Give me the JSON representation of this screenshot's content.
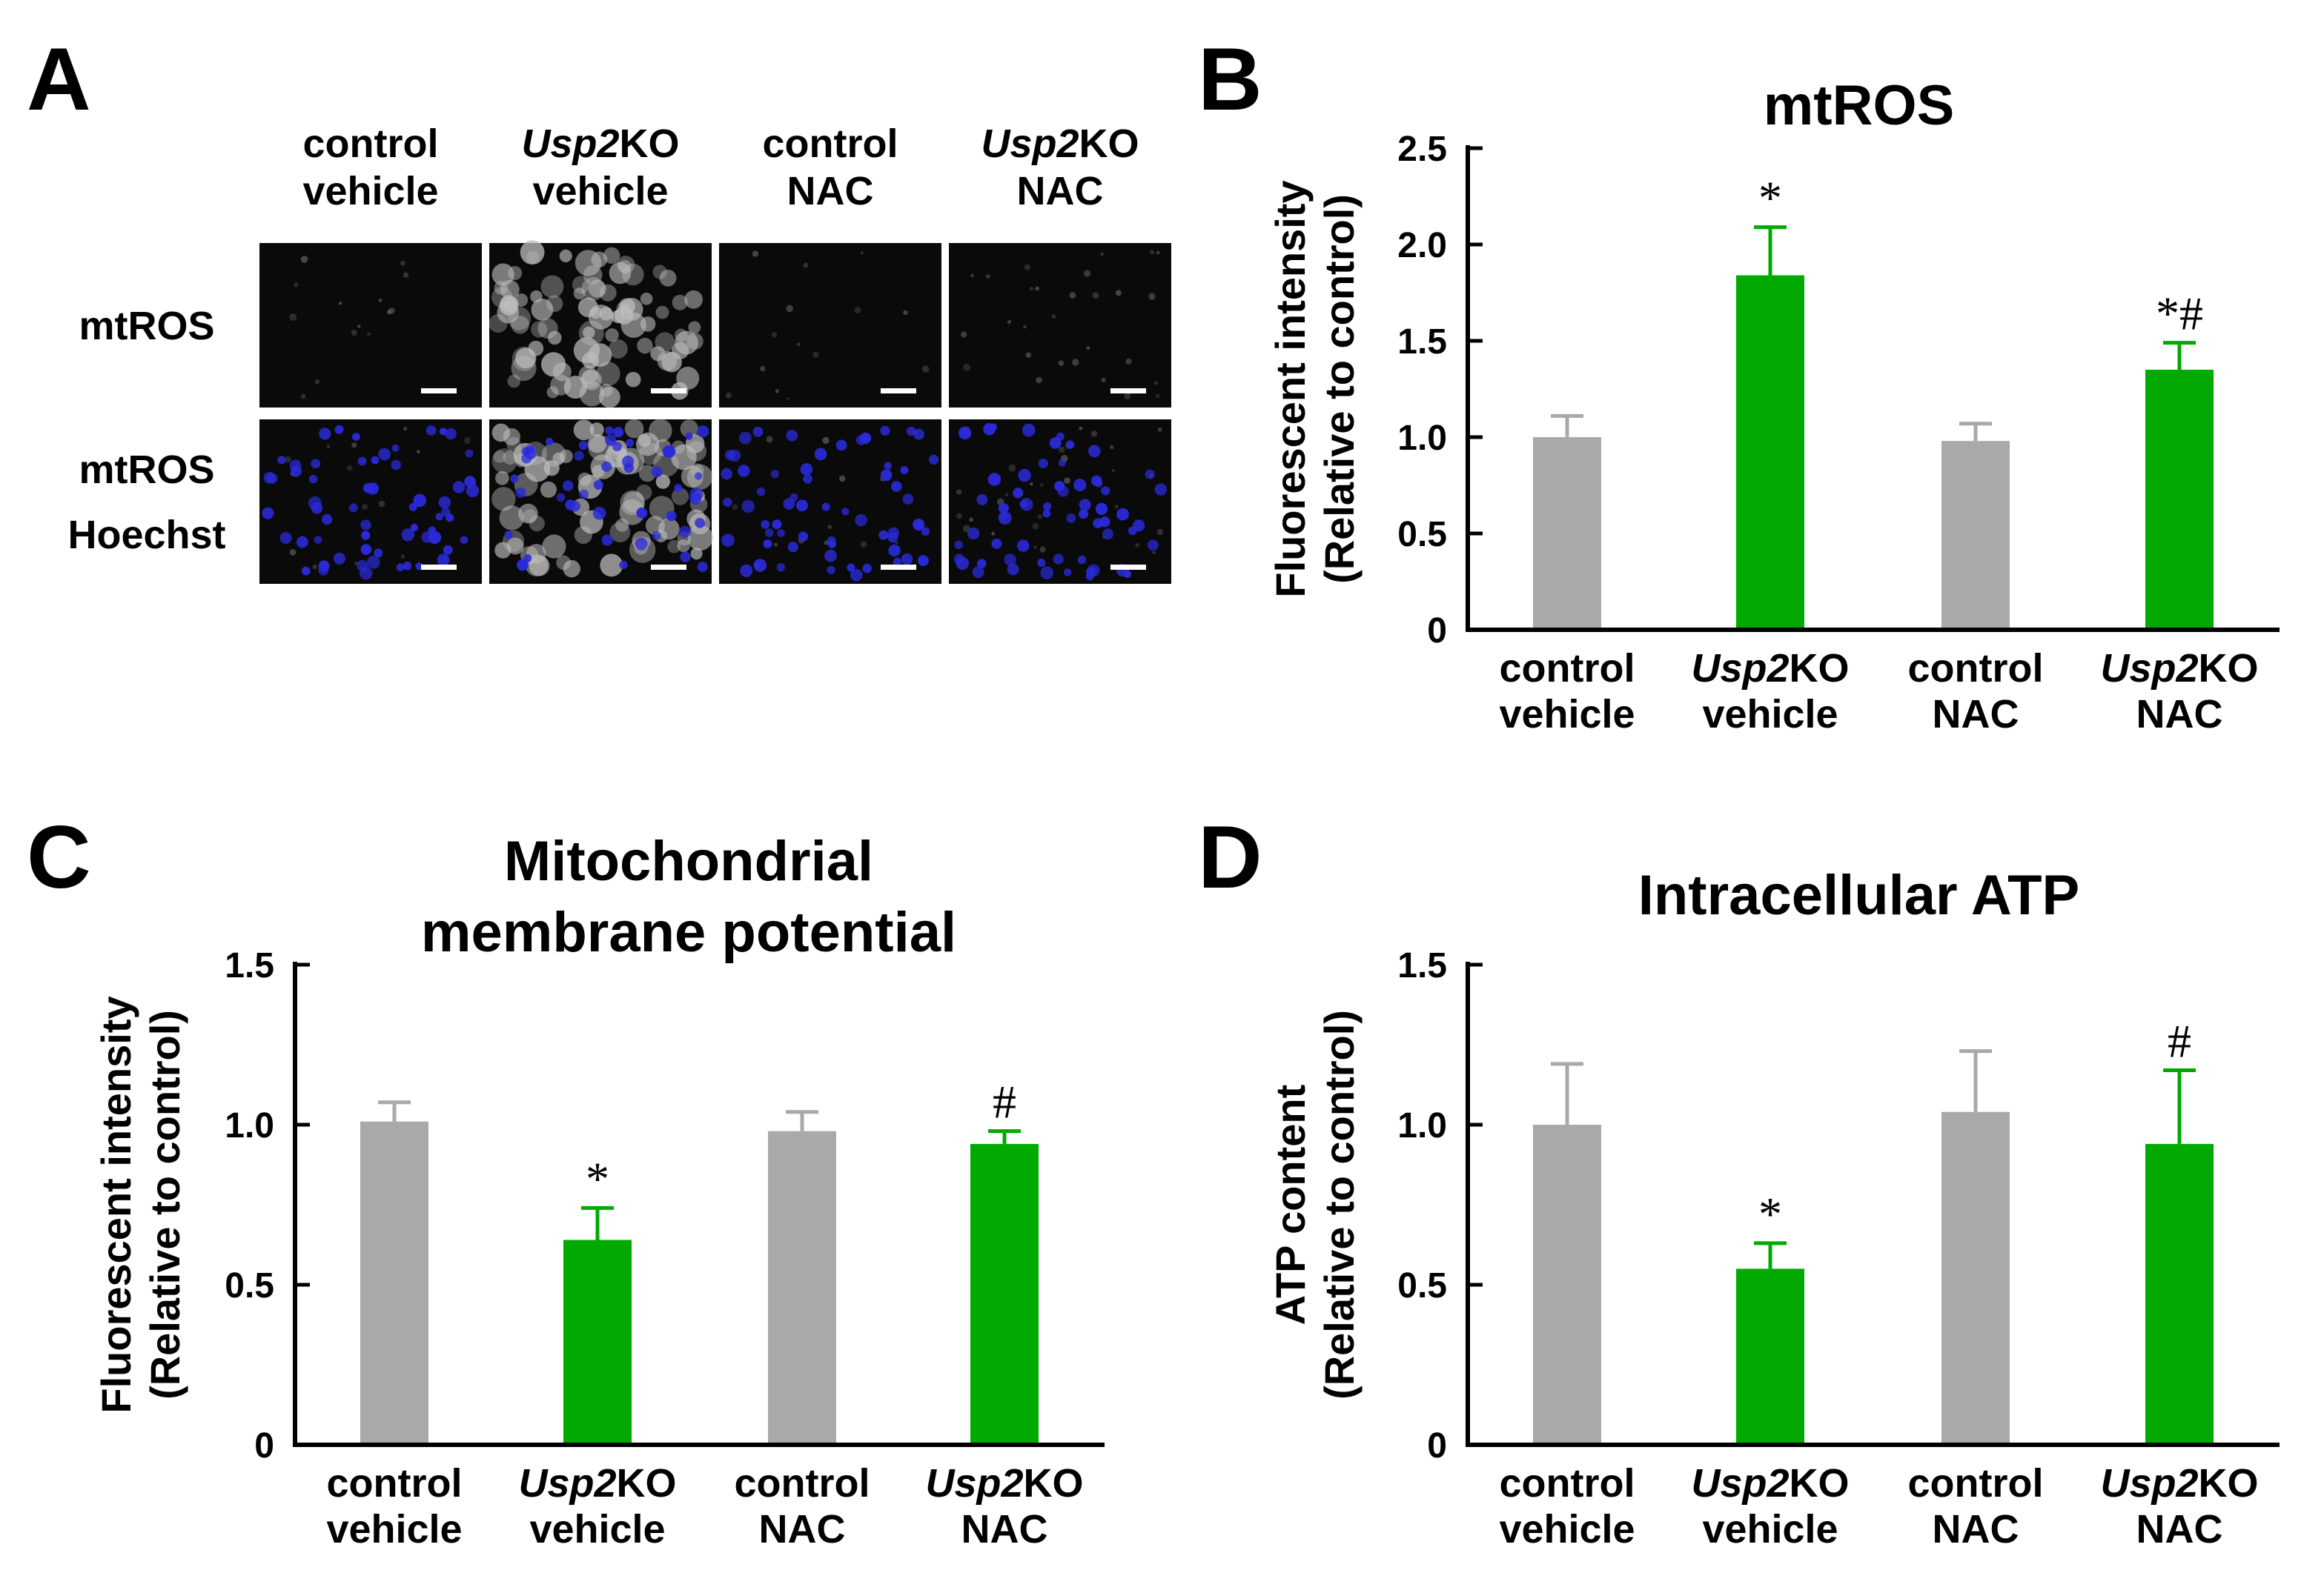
{
  "panels": {
    "A": {
      "letter": "A",
      "column_headers": [
        {
          "line1": "control",
          "line2": "vehicle",
          "italic": false
        },
        {
          "line1_italic": "Usp2",
          "line1_rest": "KO",
          "line2": "vehicle",
          "italic": true
        },
        {
          "line1": "control",
          "line2": "NAC",
          "italic": false
        },
        {
          "line1_italic": "Usp2",
          "line1_rest": "KO",
          "line2": "NAC",
          "italic": true
        }
      ],
      "row_labels": [
        {
          "lines": [
            "mtROS"
          ]
        },
        {
          "lines": [
            "mtROS",
            "Hoechst"
          ]
        }
      ],
      "colors": {
        "micro_bg": "#0a0a0a",
        "cell_gray": "#bdbdbd",
        "nucleus_blue": "#2a2ad8",
        "scale_bar": "#ffffff"
      }
    },
    "B": {
      "letter": "B"
    },
    "C": {
      "letter": "C"
    },
    "D": {
      "letter": "D"
    }
  },
  "category_labels": [
    {
      "line1": "control",
      "line2": "vehicle",
      "italic_part": ""
    },
    {
      "line1": "KO",
      "line2": "vehicle",
      "italic_part": "Usp2"
    },
    {
      "line1": "control",
      "line2": "NAC",
      "italic_part": ""
    },
    {
      "line1": "KO",
      "line2": "NAC",
      "italic_part": "Usp2"
    }
  ],
  "colors": {
    "control": "#a9a9a9",
    "usp2ko": "#00aa00",
    "axis": "#000000"
  },
  "chart_data": [
    {
      "panel": "B",
      "type": "bar",
      "title": "mtROS",
      "ylabel_lines": [
        "Fluorescent intensity",
        "(Relative to control)"
      ],
      "ylim": [
        0,
        2.5
      ],
      "yticks": [
        "0",
        "0.5",
        "1.0",
        "1.5",
        "2.0",
        "2.5"
      ],
      "ytick_values": [
        0,
        0.5,
        1.0,
        1.5,
        2.0,
        2.5
      ],
      "categories": [
        "control vehicle",
        "Usp2KO vehicle",
        "control NAC",
        "Usp2KO NAC"
      ],
      "values": [
        1.0,
        1.84,
        0.98,
        1.35
      ],
      "errors": [
        0.11,
        0.25,
        0.09,
        0.14
      ],
      "annotations": [
        "",
        "*",
        "",
        "*#"
      ]
    },
    {
      "panel": "C",
      "type": "bar",
      "title_lines": [
        "Mitochondrial",
        "membrane potential"
      ],
      "ylabel_lines": [
        "Fluorescent intensity",
        "(Relative to control)"
      ],
      "ylim": [
        0,
        1.5
      ],
      "yticks": [
        "0",
        "0.5",
        "1.0",
        "1.5"
      ],
      "ytick_values": [
        0,
        0.5,
        1.0,
        1.5
      ],
      "categories": [
        "control vehicle",
        "Usp2KO vehicle",
        "control NAC",
        "Usp2KO NAC"
      ],
      "values": [
        1.01,
        0.64,
        0.98,
        0.94
      ],
      "errors": [
        0.06,
        0.1,
        0.06,
        0.04
      ],
      "annotations": [
        "",
        "*",
        "",
        "#"
      ]
    },
    {
      "panel": "D",
      "type": "bar",
      "title": "Intracellular ATP",
      "ylabel_lines": [
        "ATP content",
        "(Relative to control)"
      ],
      "ylim": [
        0,
        1.5
      ],
      "yticks": [
        "0",
        "0.5",
        "1.0",
        "1.5"
      ],
      "ytick_values": [
        0,
        0.5,
        1.0,
        1.5
      ],
      "categories": [
        "control vehicle",
        "Usp2KO vehicle",
        "control NAC",
        "Usp2KO NAC"
      ],
      "values": [
        1.0,
        0.55,
        1.04,
        0.94
      ],
      "errors": [
        0.19,
        0.08,
        0.19,
        0.23
      ],
      "annotations": [
        "",
        "*",
        "",
        "#"
      ]
    }
  ]
}
